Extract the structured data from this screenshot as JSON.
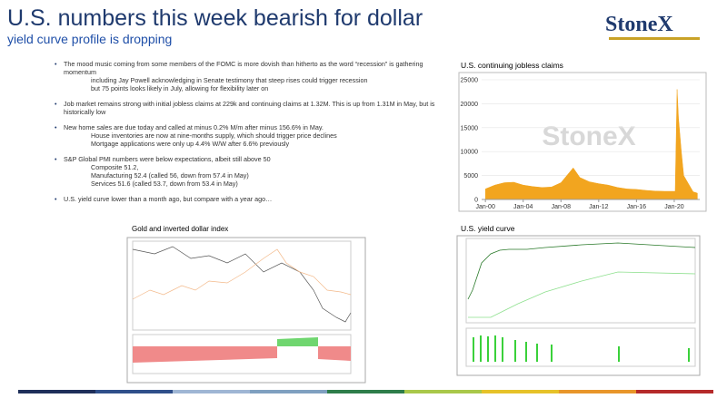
{
  "header": {
    "title": "U.S. numbers this week bearish for dollar",
    "subtitle": "yield curve profile is dropping",
    "logo": "StoneX"
  },
  "bullets": [
    {
      "text": "The mood music coming from some members of the FOMC is more dovish than hitherto as the word “recession” is gathering momentum",
      "sub": [
        "including Jay Powell acknowledging in Senate testimony that steep rises could trigger recession",
        "but 75 points looks likely in July, allowing for flexibility later on"
      ]
    },
    {
      "text": "Job market remains strong with initial jobless claims at 229k and continuing claims at 1.32M.  This is up from 1.31M in May, but is historically low",
      "sub": []
    },
    {
      "text": "New home sales are due today and called at minus 0.2% M/m after minus 156.6% in May.",
      "sub": [
        "House inventories are now at nine-months supply, which should trigger price declines",
        "Mortgage applications were only up 4.4% W/W after 6.6% previously"
      ]
    },
    {
      "text": "S&P Global PMI numbers were below expectations, albeit still above 50",
      "sub": [
        "Composite 51.2,",
        "Manufacturing 52.4 (called 56, down from 57.4 in May)",
        "Services 51.6 (called 53.7, down from 53.4 in May)"
      ]
    },
    {
      "text": "U.S. yield curve lower than a month ago, but compare with a year ago…",
      "sub": []
    }
  ],
  "chart_data": {
    "type": "area",
    "title": "U.S. continuing jobless claims",
    "watermark": "StoneX",
    "color": "#f2a51f",
    "x": [
      2000,
      2001,
      2002,
      2003,
      2004,
      2005,
      2006,
      2007,
      2008,
      2009.3,
      2010,
      2011,
      2012,
      2013,
      2014,
      2015,
      2016,
      2017,
      2018,
      2019,
      2020.1,
      2020.3,
      2020.45,
      2020.75,
      2021,
      2021.5,
      2022,
      2022.45
    ],
    "values": [
      2200,
      3000,
      3500,
      3600,
      3000,
      2700,
      2500,
      2600,
      3500,
      6600,
      4600,
      3700,
      3300,
      3000,
      2500,
      2200,
      2100,
      1900,
      1750,
      1700,
      1700,
      23000,
      17000,
      10000,
      5000,
      3300,
      1600,
      1320
    ],
    "xlim": [
      1999.6,
      2022.7
    ],
    "xticks": [
      {
        "value": 2000,
        "label": "Jan-00"
      },
      {
        "value": 2004,
        "label": "Jan-04"
      },
      {
        "value": 2008,
        "label": "Jan-08"
      },
      {
        "value": 2012,
        "label": "Jan-12"
      },
      {
        "value": 2016,
        "label": "Jan-16"
      },
      {
        "value": 2020,
        "label": "Jan-20"
      }
    ],
    "ylim": [
      0,
      25000
    ],
    "yticks": [
      0,
      5000,
      10000,
      15000,
      20000,
      25000
    ],
    "grid": true
  },
  "other_charts": [
    {
      "title": "Gold and inverted dollar index"
    },
    {
      "title": "U.S. yield curve"
    }
  ]
}
